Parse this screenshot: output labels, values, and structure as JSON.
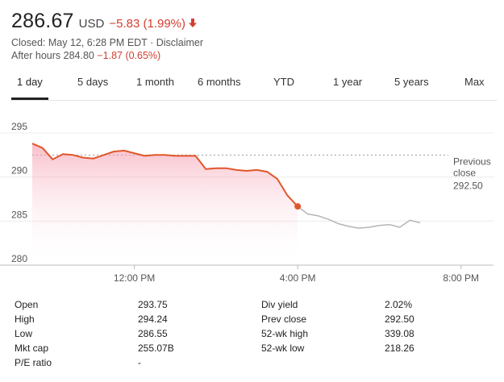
{
  "quote": {
    "price": "286.67",
    "currency": "USD",
    "change": "−5.83 (1.99%)",
    "direction_icon": "down-arrow-icon",
    "closed_text": "Closed: May 12, 6:28 PM EDT · ",
    "disclaimer": "Disclaimer",
    "after_hours_label": "After hours 284.80",
    "after_hours_change": "−1.87 (0.65%)",
    "negative_color": "#d23f31"
  },
  "tabs": [
    "1 day",
    "5 days",
    "1 month",
    "6 months",
    "YTD",
    "1 year",
    "5 years",
    "Max"
  ],
  "active_tab": "1 day",
  "chart_data": {
    "type": "line",
    "y_ticks": [
      "295",
      "290",
      "285",
      "280"
    ],
    "x_ticks": [
      "12:00 PM",
      "4:00 PM",
      "8:00 PM"
    ],
    "ylim": [
      280,
      295
    ],
    "reference_line": {
      "label_line1": "Previous",
      "label_line2": "close",
      "value_label": "292.50",
      "value": 292.5
    },
    "series": [
      {
        "name": "regular",
        "color": "#e0572a",
        "x": [
          9.5,
          9.75,
          10.0,
          10.25,
          10.5,
          10.75,
          11.0,
          11.25,
          11.5,
          11.75,
          12.0,
          12.25,
          12.5,
          12.75,
          13.0,
          13.25,
          13.5,
          13.75,
          14.0,
          14.25,
          14.5,
          14.75,
          15.0,
          15.25,
          15.5,
          15.75,
          16.0
        ],
        "values": [
          293.8,
          293.3,
          292.0,
          292.6,
          292.5,
          292.2,
          292.1,
          292.5,
          292.9,
          293.0,
          292.7,
          292.4,
          292.5,
          292.5,
          292.4,
          292.4,
          292.4,
          290.9,
          291.0,
          291.0,
          290.8,
          290.7,
          290.8,
          290.6,
          289.8,
          287.9,
          286.67
        ]
      },
      {
        "name": "after-hours",
        "color": "#b5b5b5",
        "x": [
          16.0,
          16.25,
          16.5,
          16.75,
          17.0,
          17.25,
          17.5,
          17.75,
          18.0,
          18.25,
          18.5,
          18.75,
          19.0
        ],
        "values": [
          286.67,
          285.8,
          285.6,
          285.2,
          284.7,
          284.4,
          284.2,
          284.3,
          284.5,
          284.6,
          284.3,
          285.1,
          284.8
        ]
      }
    ],
    "closing_point": 286.67
  },
  "stats": {
    "left": [
      {
        "label": "Open",
        "value": "293.75"
      },
      {
        "label": "High",
        "value": "294.24"
      },
      {
        "label": "Low",
        "value": "286.55"
      },
      {
        "label": "Mkt cap",
        "value": "255.07B"
      },
      {
        "label": "P/E ratio",
        "value": "-"
      }
    ],
    "right": [
      {
        "label": "Div yield",
        "value": "2.02%"
      },
      {
        "label": "Prev close",
        "value": "292.50"
      },
      {
        "label": "52-wk high",
        "value": "339.08"
      },
      {
        "label": "52-wk low",
        "value": "218.26"
      }
    ]
  }
}
